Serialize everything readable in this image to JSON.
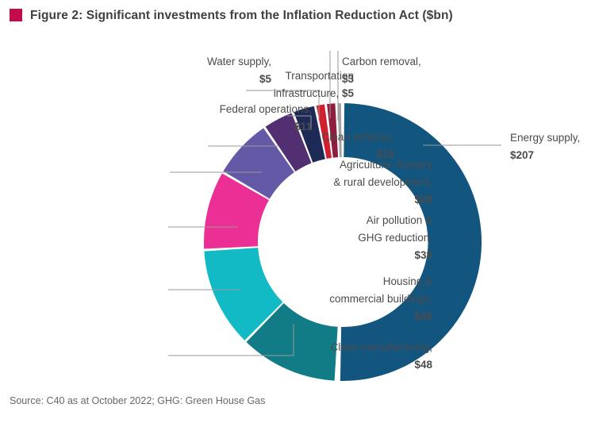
{
  "figure": {
    "title": "Figure 2: Significant investments from the Inflation Reduction Act ($bn)",
    "source": "Source: C40 as at October 2022; GHG: Green House Gas",
    "accent_color": "#C30B4E"
  },
  "chart_data": {
    "type": "pie",
    "subtype": "donut",
    "title": "Significant investments from the Inflation Reduction Act ($bn)",
    "unit": "$bn",
    "legend_position": "callout-labels",
    "segments": [
      {
        "label": "Energy supply",
        "value": 207,
        "value_label": "$207",
        "color": "#125680",
        "display_lines": [
          [
            "Energy supply,"
          ],
          [
            "**$207"
          ]
        ]
      },
      {
        "label": "Clean manufacturing",
        "value": 48,
        "value_label": "$48",
        "color": "#117C86",
        "display_lines": [
          [
            "Clean manufacturing,"
          ],
          [
            "**$48"
          ]
        ]
      },
      {
        "label": "Housing & commercial buildings",
        "value": 48,
        "value_label": "$48",
        "color": "#12BAC5",
        "display_lines": [
          [
            "Housing &"
          ],
          [
            "commercial buildings,"
          ],
          [
            "**$48"
          ]
        ]
      },
      {
        "label": "Air pollution & GHG reduction",
        "value": 38,
        "value_label": "$38",
        "color": "#EC2F94",
        "display_lines": [
          [
            "Air pollution &"
          ],
          [
            "GHG reduction,"
          ],
          [
            "**$38"
          ]
        ]
      },
      {
        "label": "Agriculture, forestry & rural development",
        "value": 29,
        "value_label": "$29",
        "color": "#6359A7",
        "display_lines": [
          [
            "Agriculture, forestry"
          ],
          [
            "& rural development,"
          ],
          [
            "**$29"
          ]
        ]
      },
      {
        "label": "Clean vehicles",
        "value": 15,
        "value_label": "$15",
        "color": "#512F70",
        "display_lines": [
          [
            "Clean vehicles,"
          ],
          [
            "**$15"
          ]
        ]
      },
      {
        "label": "Federal operations",
        "value": 11,
        "value_label": "$11",
        "color": "#1E2A56",
        "display_lines": [
          [
            "Federal operations,"
          ],
          [
            "**$11"
          ]
        ]
      },
      {
        "label": "Transportation infrastructure",
        "value": 5,
        "value_label": "$5",
        "color": "#D02030",
        "display_lines": [
          [
            "Transportation"
          ],
          [
            "infrastructure, ",
            "**$5"
          ]
        ]
      },
      {
        "label": "Water supply",
        "value": 5,
        "value_label": "$5",
        "color": "#8E1E3E",
        "display_lines": [
          [
            "Water supply,"
          ],
          [
            "**$5"
          ]
        ]
      },
      {
        "label": "Carbon removal",
        "value": 3,
        "value_label": "$3",
        "color": "#A3A3A3",
        "display_lines": [
          [
            "Carbon removal,"
          ],
          [
            "**$3"
          ]
        ]
      }
    ]
  }
}
